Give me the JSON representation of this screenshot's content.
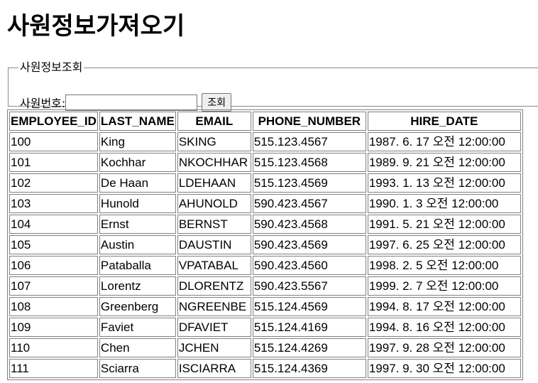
{
  "page_title": "사원정보가져오기",
  "search": {
    "legend": "사원정보조회",
    "label": "사원번호:",
    "input_value": "",
    "button_label": "조회"
  },
  "table": {
    "headers": [
      "EMPLOYEE_ID",
      "LAST_NAME",
      "EMAIL",
      "PHONE_NUMBER",
      "HIRE_DATE"
    ],
    "rows": [
      [
        "100",
        "King",
        "SKING",
        "515.123.4567",
        "1987. 6. 17 오전 12:00:00"
      ],
      [
        "101",
        "Kochhar",
        "NKOCHHAR",
        "515.123.4568",
        "1989. 9. 21 오전 12:00:00"
      ],
      [
        "102",
        "De Haan",
        "LDEHAAN",
        "515.123.4569",
        "1993. 1. 13 오전 12:00:00"
      ],
      [
        "103",
        "Hunold",
        "AHUNOLD",
        "590.423.4567",
        "1990. 1. 3 오전 12:00:00"
      ],
      [
        "104",
        "Ernst",
        "BERNST",
        "590.423.4568",
        "1991. 5. 21 오전 12:00:00"
      ],
      [
        "105",
        "Austin",
        "DAUSTIN",
        "590.423.4569",
        "1997. 6. 25 오전 12:00:00"
      ],
      [
        "106",
        "Pataballa",
        "VPATABAL",
        "590.423.4560",
        "1998. 2. 5 오전 12:00:00"
      ],
      [
        "107",
        "Lorentz",
        "DLORENTZ",
        "590.423.5567",
        "1999. 2. 7 오전 12:00:00"
      ],
      [
        "108",
        "Greenberg",
        "NGREENBE",
        "515.124.4569",
        "1994. 8. 17 오전 12:00:00"
      ],
      [
        "109",
        "Faviet",
        "DFAVIET",
        "515.124.4169",
        "1994. 8. 16 오전 12:00:00"
      ],
      [
        "110",
        "Chen",
        "JCHEN",
        "515.124.4269",
        "1997. 9. 28 오전 12:00:00"
      ],
      [
        "111",
        "Sciarra",
        "ISCIARRA",
        "515.124.4369",
        "1997. 9. 30 오전 12:00:00"
      ]
    ]
  }
}
